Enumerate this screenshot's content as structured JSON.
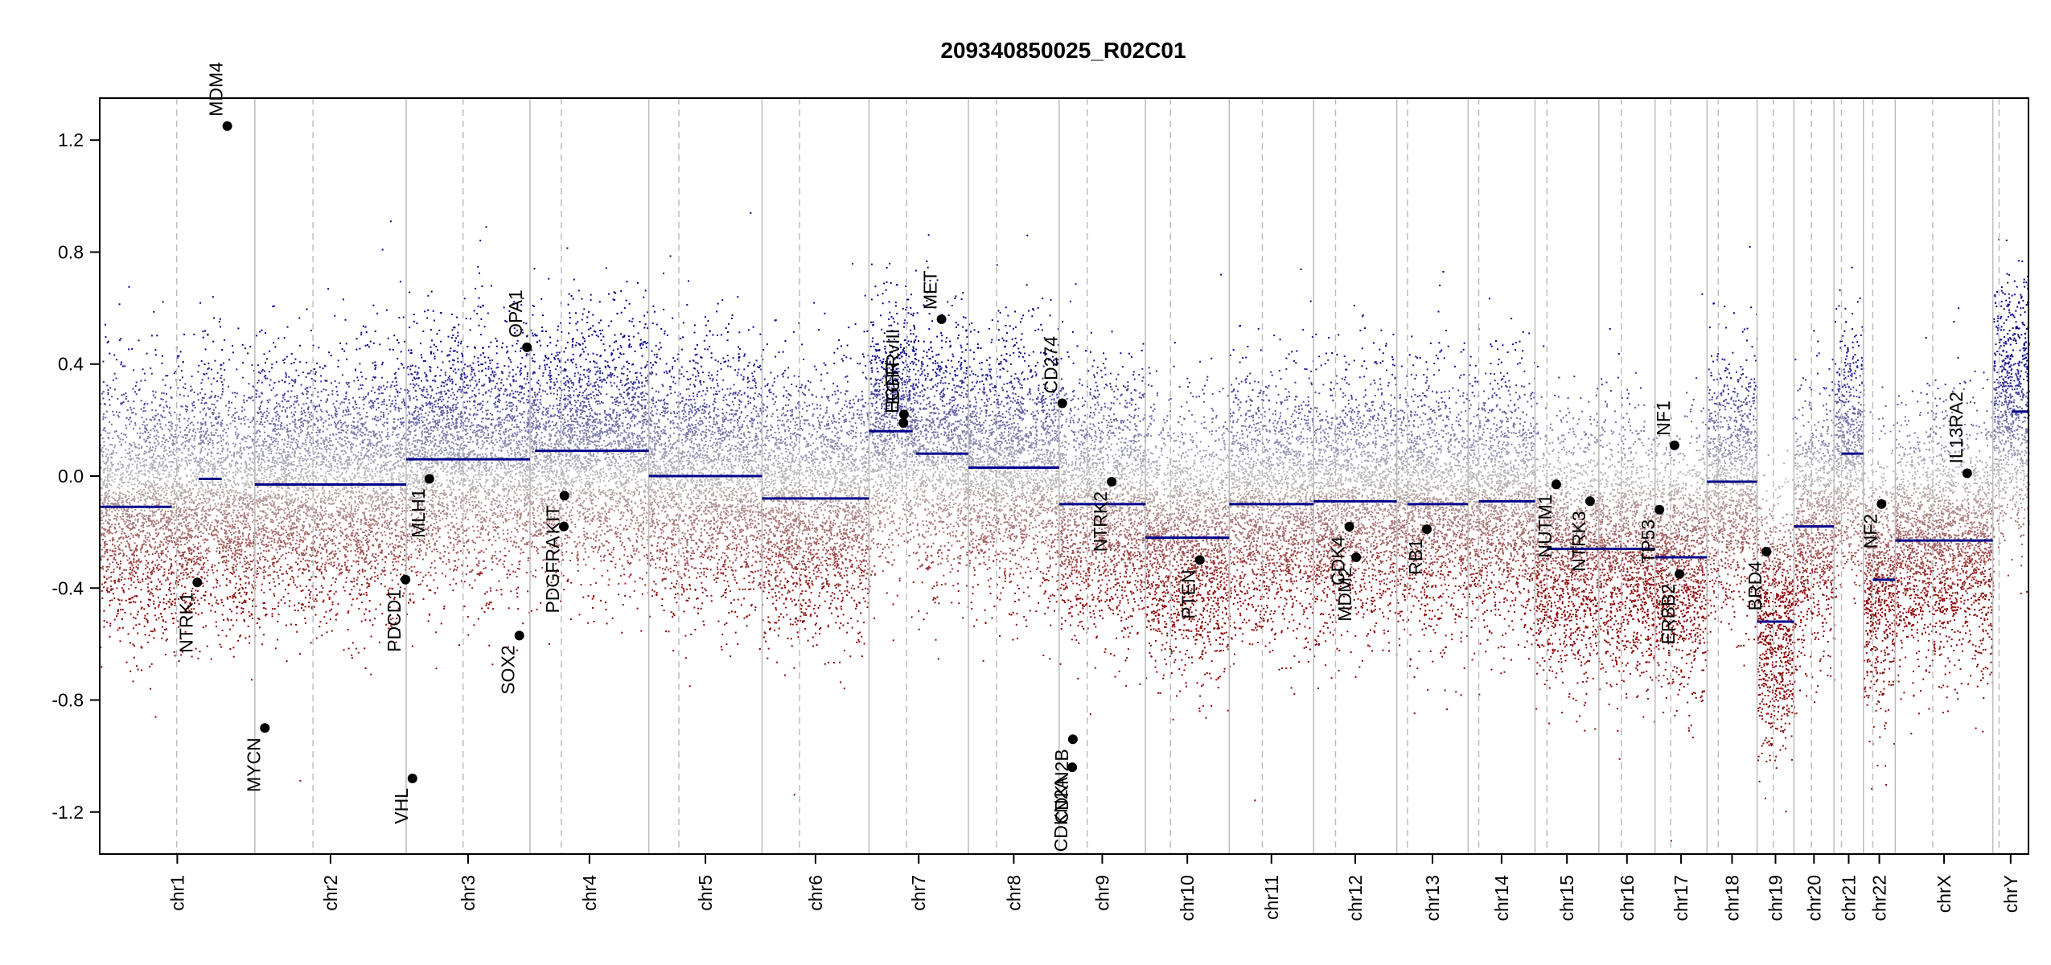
{
  "chart_data": {
    "type": "scatter",
    "title": "209340850025_R02C01",
    "xlabel": "",
    "ylabel": "",
    "ylim": [
      -1.35,
      1.35
    ],
    "yticks": [
      1.2,
      0.8,
      0.4,
      0.0,
      -0.4,
      -0.8,
      -1.2
    ],
    "ytick_labels": [
      "1.2",
      "0.8",
      "0.4",
      "0.0",
      "-0.4",
      "-0.8",
      "-1.2"
    ],
    "grid": false,
    "colors": {
      "gain": "#00008b",
      "loss": "#8b0000",
      "neutral": "#bdbdbd",
      "segment": "#00008b",
      "gene": "#000000"
    },
    "chromosomes": [
      {
        "name": "chr1",
        "size": 248,
        "centromere": 123,
        "segments": [
          {
            "start": 0,
            "end": 115,
            "value": -0.11
          },
          {
            "start": 158,
            "end": 195,
            "value": -0.01
          }
        ]
      },
      {
        "name": "chr2",
        "size": 242,
        "centromere": 93,
        "segments": [
          {
            "start": 0,
            "end": 242,
            "value": -0.03
          }
        ]
      },
      {
        "name": "chr3",
        "size": 198,
        "centromere": 91,
        "segments": [
          {
            "start": 0,
            "end": 198,
            "value": 0.06
          }
        ]
      },
      {
        "name": "chr4",
        "size": 190,
        "centromere": 50,
        "segments": [
          {
            "start": 8,
            "end": 190,
            "value": 0.09
          }
        ]
      },
      {
        "name": "chr5",
        "size": 181,
        "centromere": 48,
        "segments": [
          {
            "start": 0,
            "end": 181,
            "value": 0.0
          }
        ]
      },
      {
        "name": "chr6",
        "size": 171,
        "centromere": 60,
        "segments": [
          {
            "start": 0,
            "end": 171,
            "value": -0.08
          }
        ]
      },
      {
        "name": "chr7",
        "size": 159,
        "centromere": 60,
        "segments": [
          {
            "start": 0,
            "end": 70,
            "value": 0.16
          },
          {
            "start": 75,
            "end": 159,
            "value": 0.08
          }
        ]
      },
      {
        "name": "chr8",
        "size": 145,
        "centromere": 45,
        "segments": [
          {
            "start": 0,
            "end": 145,
            "value": 0.03
          }
        ]
      },
      {
        "name": "chr9",
        "size": 138,
        "centromere": 45,
        "segments": [
          {
            "start": 0,
            "end": 138,
            "value": -0.1
          }
        ]
      },
      {
        "name": "chr10",
        "size": 134,
        "centromere": 40,
        "segments": [
          {
            "start": 0,
            "end": 134,
            "value": -0.22
          }
        ]
      },
      {
        "name": "chr11",
        "size": 135,
        "centromere": 53,
        "segments": [
          {
            "start": 0,
            "end": 135,
            "value": -0.1
          }
        ]
      },
      {
        "name": "chr12",
        "size": 133,
        "centromere": 35,
        "segments": [
          {
            "start": 0,
            "end": 133,
            "value": -0.09
          }
        ]
      },
      {
        "name": "chr13",
        "size": 114,
        "centromere": 17,
        "segments": [
          {
            "start": 17,
            "end": 114,
            "value": -0.1
          }
        ]
      },
      {
        "name": "chr14",
        "size": 107,
        "centromere": 17,
        "segments": [
          {
            "start": 17,
            "end": 107,
            "value": -0.09
          }
        ]
      },
      {
        "name": "chr15",
        "size": 102,
        "centromere": 19,
        "segments": [
          {
            "start": 19,
            "end": 102,
            "value": -0.26
          }
        ]
      },
      {
        "name": "chr16",
        "size": 90,
        "centromere": 36,
        "segments": [
          {
            "start": 0,
            "end": 90,
            "value": -0.26
          }
        ]
      },
      {
        "name": "chr17",
        "size": 83,
        "centromere": 25,
        "segments": [
          {
            "start": 0,
            "end": 83,
            "value": -0.29
          }
        ]
      },
      {
        "name": "chr18",
        "size": 80,
        "centromere": 18,
        "segments": [
          {
            "start": 0,
            "end": 80,
            "value": -0.02
          }
        ]
      },
      {
        "name": "chr19",
        "size": 59,
        "centromere": 26,
        "segments": [
          {
            "start": 0,
            "end": 59,
            "value": -0.52
          }
        ]
      },
      {
        "name": "chr20",
        "size": 64,
        "centromere": 28,
        "segments": [
          {
            "start": 0,
            "end": 64,
            "value": -0.18
          }
        ]
      },
      {
        "name": "chr21",
        "size": 47,
        "centromere": 12,
        "segments": [
          {
            "start": 12,
            "end": 47,
            "value": 0.08
          }
        ]
      },
      {
        "name": "chr22",
        "size": 51,
        "centromere": 15,
        "segments": [
          {
            "start": 15,
            "end": 51,
            "value": -0.37
          }
        ]
      },
      {
        "name": "chrX",
        "size": 156,
        "centromere": 60,
        "segments": [
          {
            "start": 0,
            "end": 156,
            "value": -0.23
          }
        ]
      },
      {
        "name": "chrY",
        "size": 57,
        "centromere": 10,
        "segments": [
          {
            "start": 30,
            "end": 57,
            "value": 0.23
          }
        ]
      }
    ],
    "genes": [
      {
        "name": "MDM4",
        "chr": "chr1",
        "pos": 204,
        "value": 1.25
      },
      {
        "name": "NTRK1",
        "chr": "chr1",
        "pos": 156,
        "value": -0.38
      },
      {
        "name": "MYCN",
        "chr": "chr2",
        "pos": 16,
        "value": -0.9
      },
      {
        "name": "PDCD1",
        "chr": "chr2",
        "pos": 241,
        "value": -0.37
      },
      {
        "name": "VHL",
        "chr": "chr3",
        "pos": 10,
        "value": -1.08
      },
      {
        "name": "MLH1",
        "chr": "chr3",
        "pos": 37,
        "value": -0.01
      },
      {
        "name": "SOX2",
        "chr": "chr3",
        "pos": 181,
        "value": -0.57
      },
      {
        "name": "OPA1",
        "chr": "chr3",
        "pos": 193,
        "value": 0.46
      },
      {
        "name": "PDGFRA",
        "chr": "chr4",
        "pos": 54,
        "value": -0.18
      },
      {
        "name": "KIT",
        "chr": "chr4",
        "pos": 55,
        "value": -0.07
      },
      {
        "name": "EGFR",
        "chr": "chr7",
        "pos": 55,
        "value": 0.19
      },
      {
        "name": "EGFRvIII",
        "chr": "chr7",
        "pos": 56,
        "value": 0.22
      },
      {
        "name": "MET",
        "chr": "chr7",
        "pos": 116,
        "value": 0.56
      },
      {
        "name": "CD274",
        "chr": "chr9",
        "pos": 5,
        "value": 0.26
      },
      {
        "name": "CDKN2A",
        "chr": "chr9",
        "pos": 21,
        "value": -1.04
      },
      {
        "name": "CDKN2B",
        "chr": "chr9",
        "pos": 22,
        "value": -0.94
      },
      {
        "name": "NTRK2",
        "chr": "chr9",
        "pos": 84,
        "value": -0.02
      },
      {
        "name": "PTEN",
        "chr": "chr10",
        "pos": 87,
        "value": -0.3
      },
      {
        "name": "CDK4",
        "chr": "chr12",
        "pos": 57,
        "value": -0.18
      },
      {
        "name": "MDM2",
        "chr": "chr12",
        "pos": 68,
        "value": -0.29
      },
      {
        "name": "RB1",
        "chr": "chr13",
        "pos": 48,
        "value": -0.19
      },
      {
        "name": "NUTM1",
        "chr": "chr15",
        "pos": 34,
        "value": -0.03
      },
      {
        "name": "NTRK3",
        "chr": "chr15",
        "pos": 88,
        "value": -0.09
      },
      {
        "name": "TP53",
        "chr": "chr17",
        "pos": 7,
        "value": -0.12
      },
      {
        "name": "NF1",
        "chr": "chr17",
        "pos": 31,
        "value": 0.11
      },
      {
        "name": "ERBB2",
        "chr": "chr17",
        "pos": 39,
        "value": -0.35
      },
      {
        "name": "BRD4",
        "chr": "chr19",
        "pos": 15,
        "value": -0.27
      },
      {
        "name": "NF2",
        "chr": "chr22",
        "pos": 29,
        "value": -0.1
      },
      {
        "name": "IL13RA2",
        "chr": "chrX",
        "pos": 115,
        "value": 0.01
      }
    ]
  }
}
